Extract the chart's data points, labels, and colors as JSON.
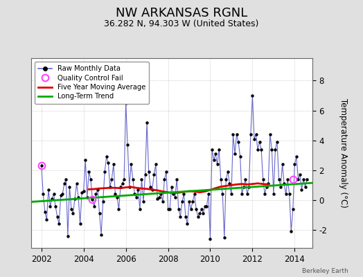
{
  "title": "NW ARKANSAS RGNL",
  "subtitle": "36.282 N, 94.303 W (United States)",
  "ylabel": "Temperature Anomaly (°C)",
  "watermark": "Berkeley Earth",
  "xlim": [
    2001.5,
    2014.83
  ],
  "ylim": [
    -3.2,
    9.5
  ],
  "yticks": [
    -2,
    0,
    2,
    4,
    6,
    8
  ],
  "xticks": [
    2002,
    2004,
    2006,
    2008,
    2010,
    2012,
    2014
  ],
  "bg_color": "#e0e0e0",
  "plot_bg_color": "#ffffff",
  "raw_color": "#6666cc",
  "dot_color": "#000000",
  "ma_color": "#dd0000",
  "trend_color": "#00aa00",
  "qc_color": "#ff44ff",
  "title_fontsize": 13,
  "subtitle_fontsize": 9,
  "raw_data_x": [
    2002.0,
    2002.083,
    2002.167,
    2002.25,
    2002.333,
    2002.417,
    2002.5,
    2002.583,
    2002.667,
    2002.75,
    2002.833,
    2002.917,
    2003.0,
    2003.083,
    2003.167,
    2003.25,
    2003.333,
    2003.417,
    2003.5,
    2003.583,
    2003.667,
    2003.75,
    2003.833,
    2003.917,
    2004.0,
    2004.083,
    2004.167,
    2004.25,
    2004.333,
    2004.417,
    2004.5,
    2004.583,
    2004.667,
    2004.75,
    2004.833,
    2004.917,
    2005.0,
    2005.083,
    2005.167,
    2005.25,
    2005.333,
    2005.417,
    2005.5,
    2005.583,
    2005.667,
    2005.75,
    2005.833,
    2005.917,
    2006.0,
    2006.083,
    2006.167,
    2006.25,
    2006.333,
    2006.417,
    2006.5,
    2006.583,
    2006.667,
    2006.75,
    2006.833,
    2006.917,
    2007.0,
    2007.083,
    2007.167,
    2007.25,
    2007.333,
    2007.417,
    2007.5,
    2007.583,
    2007.667,
    2007.75,
    2007.833,
    2007.917,
    2008.0,
    2008.083,
    2008.167,
    2008.25,
    2008.333,
    2008.417,
    2008.5,
    2008.583,
    2008.667,
    2008.75,
    2008.833,
    2008.917,
    2009.0,
    2009.083,
    2009.167,
    2009.25,
    2009.333,
    2009.417,
    2009.5,
    2009.583,
    2009.667,
    2009.75,
    2009.833,
    2009.917,
    2010.0,
    2010.083,
    2010.167,
    2010.25,
    2010.333,
    2010.417,
    2010.5,
    2010.583,
    2010.667,
    2010.75,
    2010.833,
    2010.917,
    2011.0,
    2011.083,
    2011.167,
    2011.25,
    2011.333,
    2011.417,
    2011.5,
    2011.583,
    2011.667,
    2011.75,
    2011.833,
    2011.917,
    2012.0,
    2012.083,
    2012.167,
    2012.25,
    2012.333,
    2012.417,
    2012.5,
    2012.583,
    2012.667,
    2012.75,
    2012.833,
    2012.917,
    2013.0,
    2013.083,
    2013.167,
    2013.25,
    2013.333,
    2013.417,
    2013.5,
    2013.583,
    2013.667,
    2013.75,
    2013.833,
    2013.917,
    2014.0,
    2014.083,
    2014.167,
    2014.25,
    2014.333,
    2014.417,
    2014.5,
    2014.583
  ],
  "raw_data_y": [
    2.3,
    0.4,
    -0.8,
    -1.3,
    0.7,
    -0.4,
    0.1,
    0.4,
    -0.4,
    -1.1,
    -1.6,
    0.3,
    0.4,
    1.1,
    1.4,
    -2.4,
    0.9,
    -0.6,
    -0.9,
    0.1,
    1.1,
    0.2,
    -1.6,
    0.5,
    0.6,
    2.7,
    0.2,
    1.9,
    1.4,
    0.05,
    -0.4,
    0.4,
    0.7,
    -0.9,
    -2.3,
    -0.1,
    1.9,
    2.9,
    2.5,
    0.9,
    1.4,
    2.4,
    0.4,
    0.2,
    -0.6,
    0.9,
    1.1,
    1.4,
    6.5,
    3.7,
    0.9,
    2.4,
    1.4,
    0.4,
    0.2,
    0.7,
    -0.6,
    1.4,
    -0.1,
    1.7,
    5.2,
    1.9,
    0.9,
    0.7,
    1.7,
    2.4,
    0.1,
    0.2,
    0.4,
    -0.1,
    1.4,
    1.9,
    -0.6,
    -0.6,
    0.9,
    0.4,
    0.2,
    1.4,
    -0.6,
    -1.1,
    -0.1,
    0.4,
    -1.1,
    -1.6,
    -0.1,
    -0.6,
    -0.1,
    0.4,
    -0.6,
    -1.1,
    -0.9,
    -0.6,
    -0.9,
    -0.4,
    -0.4,
    0.4,
    -2.6,
    3.4,
    2.7,
    3.1,
    2.4,
    3.4,
    1.4,
    0.4,
    -2.5,
    1.4,
    1.9,
    1.1,
    0.4,
    4.4,
    3.1,
    4.4,
    3.9,
    2.9,
    0.4,
    0.9,
    1.4,
    0.4,
    0.9,
    4.4,
    7.0,
    4.1,
    4.4,
    3.4,
    3.9,
    3.4,
    1.4,
    0.4,
    0.9,
    1.1,
    4.4,
    3.4,
    0.4,
    3.4,
    3.9,
    1.4,
    0.9,
    2.4,
    1.1,
    0.4,
    1.4,
    0.4,
    -2.1,
    -0.6,
    2.4,
    2.9,
    1.4,
    1.7,
    0.7,
    1.4,
    0.9,
    1.4
  ],
  "qc_fail_points": [
    [
      2002.0,
      2.3
    ],
    [
      2004.417,
      0.05
    ],
    [
      2013.917,
      1.4
    ]
  ],
  "ma_x": [
    2004.25,
    2004.5,
    2004.75,
    2005.0,
    2005.25,
    2005.5,
    2005.75,
    2006.0,
    2006.25,
    2006.5,
    2006.75,
    2007.0,
    2007.25,
    2007.5,
    2007.75,
    2008.0,
    2008.25,
    2008.5,
    2008.75,
    2009.0,
    2009.25,
    2009.5,
    2009.75,
    2010.0,
    2010.25,
    2010.5,
    2010.75,
    2011.0,
    2011.25,
    2011.5,
    2011.75,
    2012.0,
    2012.25,
    2012.5,
    2012.75
  ],
  "ma_y": [
    0.72,
    0.74,
    0.78,
    0.8,
    0.82,
    0.82,
    0.8,
    0.85,
    0.88,
    0.82,
    0.78,
    0.75,
    0.7,
    0.65,
    0.58,
    0.52,
    0.48,
    0.5,
    0.55,
    0.6,
    0.58,
    0.52,
    0.58,
    0.68,
    0.8,
    0.9,
    0.95,
    1.0,
    1.05,
    1.08,
    1.05,
    1.08,
    1.12,
    1.08,
    1.05
  ],
  "trend_x": [
    2001.5,
    2014.83
  ],
  "trend_y": [
    -0.12,
    1.15
  ]
}
